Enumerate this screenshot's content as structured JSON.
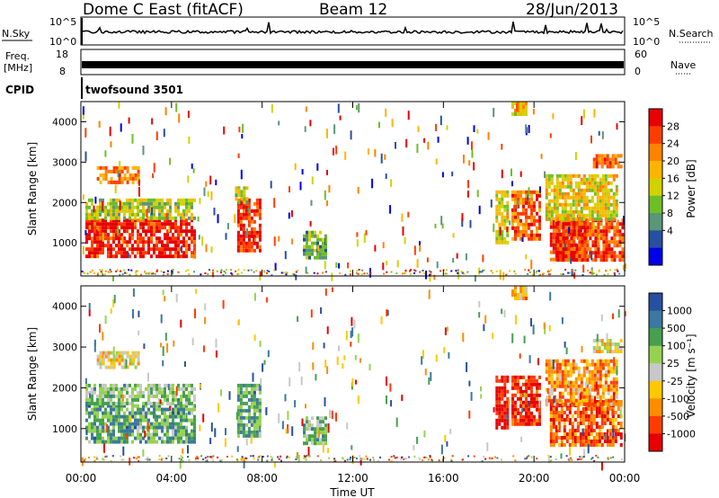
{
  "header": {
    "station": "Dome C East (fitACF)",
    "beam": "Beam 12",
    "date": "28/Jun/2013"
  },
  "top_panels": {
    "nsky_label": "N.Sky",
    "nsky_ticks": [
      "10^5",
      "10^0"
    ],
    "nsearch_label": "N.Search",
    "nsearch_ticks": [
      "10^5",
      "10^0"
    ],
    "freq_label_line1": "Freq.",
    "freq_label_line2": "[MHz]",
    "freq_ticks": [
      "18",
      "8"
    ],
    "nave_label": "Nave",
    "nave_ticks": [
      "60",
      "0"
    ],
    "cpid_label": "CPID",
    "cpid_value": "twofsound 3501"
  },
  "chart_data": [
    {
      "type": "heatmap",
      "name": "power",
      "ylabel": "Slant Range [km]",
      "ylim": [
        180,
        4500
      ],
      "y_ticks": [
        "1000",
        "2000",
        "3000",
        "4000"
      ],
      "xlim_hours": [
        0,
        24
      ],
      "colorbar": {
        "title": "Power [dB]",
        "ticks": [
          "28",
          "24",
          "20",
          "16",
          "12",
          "8",
          "4"
        ],
        "colors": [
          "#e60000",
          "#ff3c00",
          "#ff8200",
          "#ffb400",
          "#d2d200",
          "#6ebe28",
          "#5a9678",
          "#2850a0",
          "#0000e6"
        ]
      },
      "patches": [
        {
          "t0": 0.2,
          "t1": 5.0,
          "r0": 700,
          "r1": 1600,
          "level": 0.92
        },
        {
          "t0": 0.2,
          "t1": 5.0,
          "r0": 1600,
          "r1": 2100,
          "level": 0.45
        },
        {
          "t0": 0.7,
          "t1": 2.6,
          "r0": 2500,
          "r1": 2900,
          "level": 0.72
        },
        {
          "t0": 6.9,
          "t1": 7.9,
          "r0": 800,
          "r1": 2100,
          "level": 0.9
        },
        {
          "t0": 6.8,
          "t1": 7.3,
          "r0": 2000,
          "r1": 2400,
          "level": 0.5
        },
        {
          "t0": 9.8,
          "t1": 10.8,
          "r0": 600,
          "r1": 1300,
          "level": 0.35
        },
        {
          "t0": 18.3,
          "t1": 18.8,
          "r0": 1000,
          "r1": 2300,
          "level": 0.5
        },
        {
          "t0": 19.0,
          "t1": 20.2,
          "r0": 1100,
          "r1": 2300,
          "level": 0.78
        },
        {
          "t0": 19.0,
          "t1": 19.6,
          "r0": 4200,
          "r1": 4500,
          "level": 0.6
        },
        {
          "t0": 20.7,
          "t1": 22.3,
          "r0": 600,
          "r1": 1700,
          "level": 0.9
        },
        {
          "t0": 21.0,
          "t1": 23.9,
          "r0": 600,
          "r1": 1600,
          "level": 0.85
        },
        {
          "t0": 20.5,
          "t1": 23.6,
          "r0": 1600,
          "r1": 2700,
          "level": 0.55
        },
        {
          "t0": 22.6,
          "t1": 23.9,
          "r0": 2900,
          "r1": 3200,
          "level": 0.82
        }
      ]
    },
    {
      "type": "heatmap",
      "name": "velocity",
      "ylabel": "Slant Range [km]",
      "ylim": [
        180,
        4500
      ],
      "y_ticks": [
        "1000",
        "2000",
        "3000",
        "4000"
      ],
      "x_ticks": [
        "00:00",
        "04:00",
        "08:00",
        "12:00",
        "16:00",
        "20:00",
        "00:00"
      ],
      "xlabel": "Time UT",
      "xlim_hours": [
        0,
        24
      ],
      "colorbar": {
        "title": "Velocity [m s⁻¹]",
        "ticks": [
          "1000",
          "500",
          "100",
          "25",
          "-25",
          "-100",
          "-500",
          "-1000"
        ],
        "colors": [
          "#2850a0",
          "#3c78a0",
          "#46a050",
          "#96d250",
          "#c8c8c8",
          "#ffc800",
          "#ff8c00",
          "#ff3c00",
          "#e60000"
        ]
      },
      "patches": [
        {
          "t0": 0.2,
          "t1": 5.0,
          "r0": 700,
          "r1": 1600,
          "level": 0.72
        },
        {
          "t0": 0.2,
          "t1": 5.0,
          "r0": 1600,
          "r1": 2100,
          "level": 0.62
        },
        {
          "t0": 0.7,
          "t1": 2.6,
          "r0": 2500,
          "r1": 2900,
          "level": 0.45
        },
        {
          "t0": 6.9,
          "t1": 7.9,
          "r0": 800,
          "r1": 2100,
          "level": 0.72
        },
        {
          "t0": 9.8,
          "t1": 10.8,
          "r0": 600,
          "r1": 1300,
          "level": 0.65
        },
        {
          "t0": 18.3,
          "t1": 18.8,
          "r0": 1000,
          "r1": 2300,
          "level": 0.05
        },
        {
          "t0": 19.0,
          "t1": 20.2,
          "r0": 1100,
          "r1": 2300,
          "level": 0.1
        },
        {
          "t0": 20.7,
          "t1": 23.9,
          "r0": 600,
          "r1": 1700,
          "level": 0.18
        },
        {
          "t0": 20.5,
          "t1": 23.6,
          "r0": 1600,
          "r1": 2700,
          "level": 0.3
        },
        {
          "t0": 22.6,
          "t1": 23.9,
          "r0": 2900,
          "r1": 3200,
          "level": 0.45
        },
        {
          "t0": 19.0,
          "t1": 19.6,
          "r0": 4200,
          "r1": 4500,
          "level": 0.35
        }
      ]
    }
  ]
}
